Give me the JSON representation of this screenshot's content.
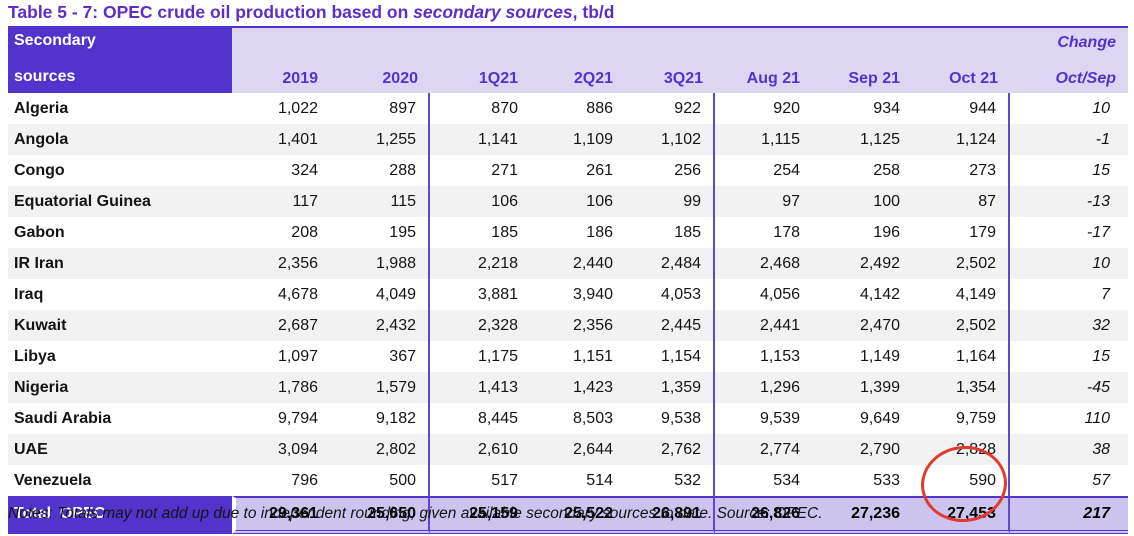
{
  "title": {
    "prefix": "Table 5 - 7: OPEC crude oil production based on ",
    "italic": "secondary sources",
    "suffix": ", tb/d"
  },
  "table": {
    "header": {
      "label_line1": "Secondary",
      "label_line2": "sources",
      "periods": [
        "2019",
        "2020",
        "1Q21",
        "2Q21",
        "3Q21",
        "Aug 21",
        "Sep 21",
        "Oct 21"
      ],
      "change_line1": "Change",
      "change_line2": "Oct/Sep"
    },
    "rows": [
      {
        "country": "Algeria",
        "values": [
          "1,022",
          "897",
          "870",
          "886",
          "922",
          "920",
          "934",
          "944"
        ],
        "change": "10"
      },
      {
        "country": "Angola",
        "values": [
          "1,401",
          "1,255",
          "1,141",
          "1,109",
          "1,102",
          "1,115",
          "1,125",
          "1,124"
        ],
        "change": "-1"
      },
      {
        "country": "Congo",
        "values": [
          "324",
          "288",
          "271",
          "261",
          "256",
          "254",
          "258",
          "273"
        ],
        "change": "15"
      },
      {
        "country": "Equatorial Guinea",
        "values": [
          "117",
          "115",
          "106",
          "106",
          "99",
          "97",
          "100",
          "87"
        ],
        "change": "-13"
      },
      {
        "country": "Gabon",
        "values": [
          "208",
          "195",
          "185",
          "186",
          "185",
          "178",
          "196",
          "179"
        ],
        "change": "-17"
      },
      {
        "country": "IR Iran",
        "values": [
          "2,356",
          "1,988",
          "2,218",
          "2,440",
          "2,484",
          "2,468",
          "2,492",
          "2,502"
        ],
        "change": "10"
      },
      {
        "country": "Iraq",
        "values": [
          "4,678",
          "4,049",
          "3,881",
          "3,940",
          "4,053",
          "4,056",
          "4,142",
          "4,149"
        ],
        "change": "7"
      },
      {
        "country": "Kuwait",
        "values": [
          "2,687",
          "2,432",
          "2,328",
          "2,356",
          "2,445",
          "2,441",
          "2,470",
          "2,502"
        ],
        "change": "32"
      },
      {
        "country": "Libya",
        "values": [
          "1,097",
          "367",
          "1,175",
          "1,151",
          "1,154",
          "1,153",
          "1,149",
          "1,164"
        ],
        "change": "15"
      },
      {
        "country": "Nigeria",
        "values": [
          "1,786",
          "1,579",
          "1,413",
          "1,423",
          "1,359",
          "1,296",
          "1,399",
          "1,354"
        ],
        "change": "-45"
      },
      {
        "country": "Saudi Arabia",
        "values": [
          "9,794",
          "9,182",
          "8,445",
          "8,503",
          "9,538",
          "9,539",
          "9,649",
          "9,759"
        ],
        "change": "110"
      },
      {
        "country": "UAE",
        "values": [
          "3,094",
          "2,802",
          "2,610",
          "2,644",
          "2,762",
          "2,774",
          "2,790",
          "2,828"
        ],
        "change": "38"
      },
      {
        "country": "Venezuela",
        "values": [
          "796",
          "500",
          "517",
          "514",
          "532",
          "534",
          "533",
          "590"
        ],
        "change": "57"
      }
    ],
    "total": {
      "label": "Total  OPEC",
      "values": [
        "29,361",
        "25,650",
        "25,159",
        "25,522",
        "26,891",
        "26,826",
        "27,236",
        "27,453"
      ],
      "change": "217"
    }
  },
  "annotation": {
    "shape": "red-ellipse",
    "highlighted_value": "27,453",
    "color": "#E23B2E"
  },
  "notes": "Notes: Totals may not add up due to independent rounding, given available secondary sources to date. Source: OPEC.",
  "colors": {
    "accent_dark": "#5233CB",
    "header_light_bg": "#DCD6F3",
    "total_values_bg": "#CCC4EE",
    "alt_row_bg": "#F2F2F2",
    "separator": "#5F48CE",
    "title_text": "#5E2DC9"
  }
}
